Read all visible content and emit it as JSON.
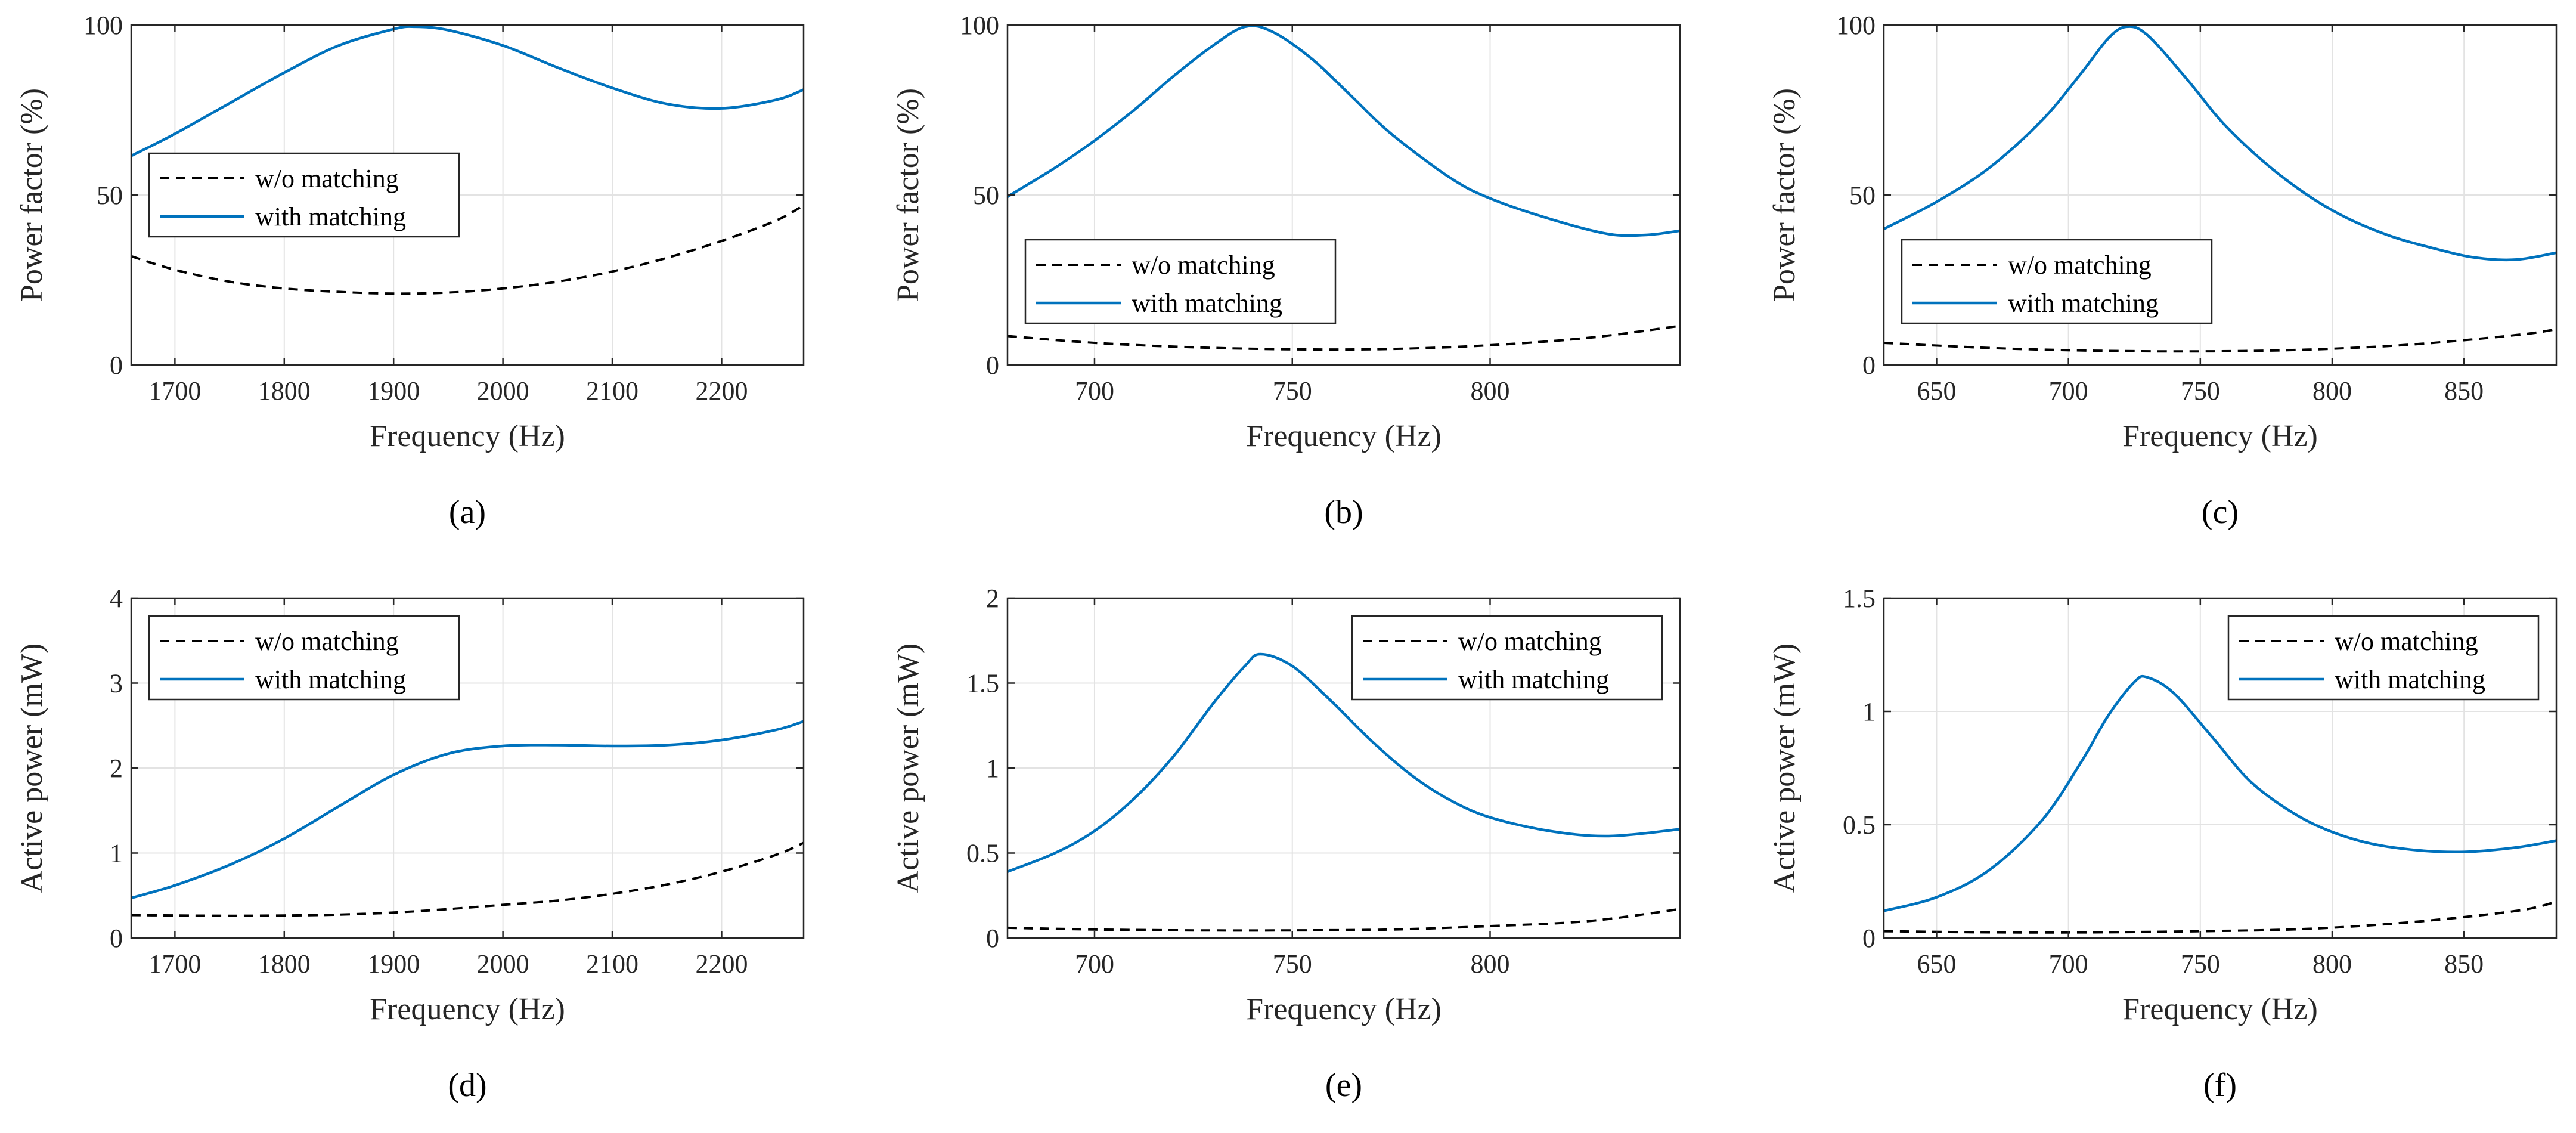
{
  "colors": {
    "with_matching": "#0072BD",
    "without_matching": "#000000",
    "grid": "#e3e3e3",
    "axis": "#262626"
  },
  "chart_data": [
    {
      "type": "line",
      "caption": "(a)",
      "title": "",
      "xlabel": "Frequency (Hz)",
      "ylabel": "Power factor (%)",
      "xlim": [
        1660,
        2275
      ],
      "ylim": [
        0,
        100
      ],
      "xticks": [
        1700,
        1800,
        1900,
        2000,
        2100,
        2200
      ],
      "yticks": [
        0,
        50,
        100
      ],
      "legend": {
        "position": "middle-left",
        "entries": [
          "w/o matching",
          "with matching"
        ]
      },
      "series": [
        {
          "name": "w/o matching",
          "style": "dashed",
          "x": [
            1660,
            1700,
            1750,
            1800,
            1850,
            1900,
            1950,
            2000,
            2050,
            2100,
            2150,
            2200,
            2250,
            2275
          ],
          "y": [
            32,
            28,
            24.5,
            22.5,
            21.5,
            21,
            21.3,
            22.5,
            24.5,
            27.5,
            31.5,
            36.5,
            42.5,
            47
          ]
        },
        {
          "name": "with matching",
          "style": "solid",
          "x": [
            1660,
            1700,
            1750,
            1800,
            1850,
            1900,
            1920,
            1950,
            2000,
            2050,
            2100,
            2150,
            2200,
            2250,
            2275
          ],
          "y": [
            61.5,
            68,
            77,
            86,
            94,
            98.8,
            99.5,
            98.5,
            94,
            87.5,
            81.5,
            76.8,
            75.5,
            78,
            81
          ]
        }
      ]
    },
    {
      "type": "line",
      "caption": "(b)",
      "title": "",
      "xlabel": "Frequency (Hz)",
      "ylabel": "Power factor (%)",
      "xlim": [
        678,
        848
      ],
      "ylim": [
        0,
        100
      ],
      "xticks": [
        700,
        750,
        800
      ],
      "yticks": [
        0,
        50,
        100
      ],
      "legend": {
        "position": "bottom-left",
        "entries": [
          "w/o matching",
          "with matching"
        ]
      },
      "series": [
        {
          "name": "w/o matching",
          "style": "dashed",
          "x": [
            678,
            700,
            725,
            750,
            775,
            800,
            825,
            848
          ],
          "y": [
            8.5,
            6.5,
            5.2,
            4.6,
            4.7,
            5.8,
            8,
            11.5
          ]
        },
        {
          "name": "with matching",
          "style": "solid",
          "x": [
            678,
            690,
            700,
            710,
            720,
            730,
            738,
            745,
            755,
            765,
            775,
            790,
            800,
            815,
            830,
            840,
            848
          ],
          "y": [
            49.5,
            58,
            66,
            75,
            85,
            94,
            99.5,
            98,
            90,
            79,
            68,
            55,
            49,
            43,
            38.5,
            38.3,
            39.5
          ]
        }
      ]
    },
    {
      "type": "line",
      "caption": "(c)",
      "title": "",
      "xlabel": "Frequency (Hz)",
      "ylabel": "Power factor (%)",
      "xlim": [
        630,
        885
      ],
      "ylim": [
        0,
        100
      ],
      "xticks": [
        650,
        700,
        750,
        800,
        850
      ],
      "yticks": [
        0,
        50,
        100
      ],
      "legend": {
        "position": "bottom-left",
        "entries": [
          "w/o matching",
          "with matching"
        ]
      },
      "series": [
        {
          "name": "w/o matching",
          "style": "dashed",
          "x": [
            630,
            670,
            710,
            750,
            790,
            830,
            870,
            885
          ],
          "y": [
            6.5,
            5,
            4.2,
            4,
            4.5,
            6,
            8.8,
            10.5
          ]
        },
        {
          "name": "with matching",
          "style": "solid",
          "x": [
            630,
            650,
            670,
            690,
            705,
            715,
            722,
            730,
            745,
            760,
            780,
            800,
            820,
            840,
            855,
            870,
            885
          ],
          "y": [
            40,
            48,
            58,
            72,
            86,
            96,
            99.5,
            97,
            84,
            70,
            56,
            45.5,
            38.5,
            34,
            31.5,
            31,
            33
          ]
        }
      ]
    },
    {
      "type": "line",
      "caption": "(d)",
      "title": "",
      "xlabel": "Frequency (Hz)",
      "ylabel": "Active power (mW)",
      "xlim": [
        1660,
        2275
      ],
      "ylim": [
        0,
        4
      ],
      "xticks": [
        1700,
        1800,
        1900,
        2000,
        2100,
        2200
      ],
      "yticks": [
        0,
        1,
        2,
        3,
        4
      ],
      "legend": {
        "position": "top-left",
        "entries": [
          "w/o matching",
          "with matching"
        ]
      },
      "series": [
        {
          "name": "w/o matching",
          "style": "dashed",
          "x": [
            1660,
            1700,
            1750,
            1800,
            1850,
            1900,
            1950,
            2000,
            2050,
            2100,
            2150,
            2200,
            2250,
            2275
          ],
          "y": [
            0.27,
            0.265,
            0.262,
            0.265,
            0.275,
            0.3,
            0.34,
            0.39,
            0.44,
            0.52,
            0.63,
            0.78,
            0.98,
            1.12
          ]
        },
        {
          "name": "with matching",
          "style": "solid",
          "x": [
            1660,
            1700,
            1750,
            1800,
            1850,
            1900,
            1950,
            2000,
            2050,
            2100,
            2150,
            2200,
            2250,
            2275
          ],
          "y": [
            0.47,
            0.62,
            0.86,
            1.17,
            1.55,
            1.92,
            2.17,
            2.26,
            2.27,
            2.26,
            2.27,
            2.33,
            2.45,
            2.55
          ]
        }
      ]
    },
    {
      "type": "line",
      "caption": "(e)",
      "title": "",
      "xlabel": "Frequency (Hz)",
      "ylabel": "Active power (mW)",
      "xlim": [
        678,
        848
      ],
      "ylim": [
        0,
        2
      ],
      "xticks": [
        700,
        750,
        800
      ],
      "yticks": [
        0,
        0.5,
        1,
        1.5,
        2
      ],
      "legend": {
        "position": "top-right",
        "entries": [
          "w/o matching",
          "with matching"
        ]
      },
      "series": [
        {
          "name": "w/o matching",
          "style": "dashed",
          "x": [
            678,
            700,
            725,
            750,
            775,
            800,
            825,
            848
          ],
          "y": [
            0.06,
            0.05,
            0.045,
            0.045,
            0.05,
            0.07,
            0.1,
            0.17
          ]
        },
        {
          "name": "with matching",
          "style": "solid",
          "x": [
            678,
            690,
            700,
            710,
            720,
            730,
            738,
            742,
            750,
            760,
            770,
            780,
            790,
            800,
            815,
            830,
            848
          ],
          "y": [
            0.39,
            0.5,
            0.63,
            0.82,
            1.07,
            1.38,
            1.6,
            1.67,
            1.6,
            1.39,
            1.16,
            0.96,
            0.81,
            0.71,
            0.63,
            0.6,
            0.64
          ]
        }
      ]
    },
    {
      "type": "line",
      "caption": "(f)",
      "title": "",
      "xlabel": "Frequency (Hz)",
      "ylabel": "Active power (mW)",
      "xlim": [
        630,
        885
      ],
      "ylim": [
        0,
        1.5
      ],
      "xticks": [
        650,
        700,
        750,
        800,
        850
      ],
      "yticks": [
        0,
        0.5,
        1,
        1.5
      ],
      "legend": {
        "position": "top-right",
        "entries": [
          "w/o matching",
          "with matching"
        ]
      },
      "series": [
        {
          "name": "w/o matching",
          "style": "dashed",
          "x": [
            630,
            670,
            710,
            750,
            790,
            830,
            870,
            885
          ],
          "y": [
            0.03,
            0.025,
            0.025,
            0.03,
            0.04,
            0.07,
            0.12,
            0.16
          ]
        },
        {
          "name": "with matching",
          "style": "solid",
          "x": [
            630,
            650,
            670,
            690,
            705,
            715,
            725,
            730,
            740,
            755,
            770,
            790,
            810,
            830,
            850,
            870,
            885
          ],
          "y": [
            0.12,
            0.18,
            0.3,
            0.52,
            0.78,
            0.98,
            1.13,
            1.15,
            1.08,
            0.88,
            0.68,
            0.52,
            0.43,
            0.39,
            0.38,
            0.4,
            0.43
          ]
        }
      ]
    }
  ]
}
